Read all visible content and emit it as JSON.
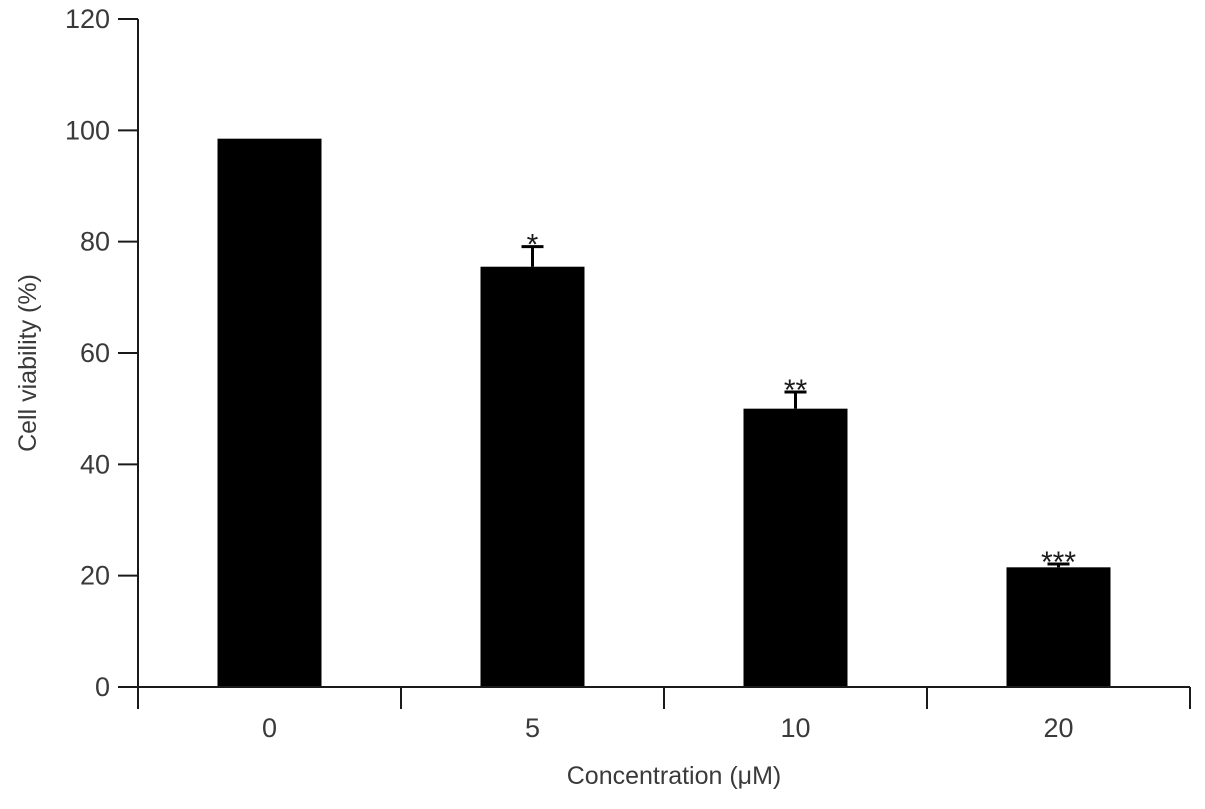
{
  "chart_data": {
    "type": "bar",
    "categories": [
      "0",
      "5",
      "10",
      "20"
    ],
    "values": [
      98.5,
      75.5,
      50,
      21.5
    ],
    "errors": [
      0,
      3.6,
      3,
      0.6
    ],
    "significance": [
      "",
      "*",
      "**",
      "***"
    ],
    "xlabel": "Concentration (μM)",
    "ylabel": "Cell viability (%)",
    "ylim": [
      0,
      120
    ],
    "yticks": [
      "0",
      "20",
      "40",
      "60",
      "80",
      "100",
      "120"
    ],
    "bar_color": "#000000",
    "axis_color": "#1a1a1a",
    "grid": false
  }
}
